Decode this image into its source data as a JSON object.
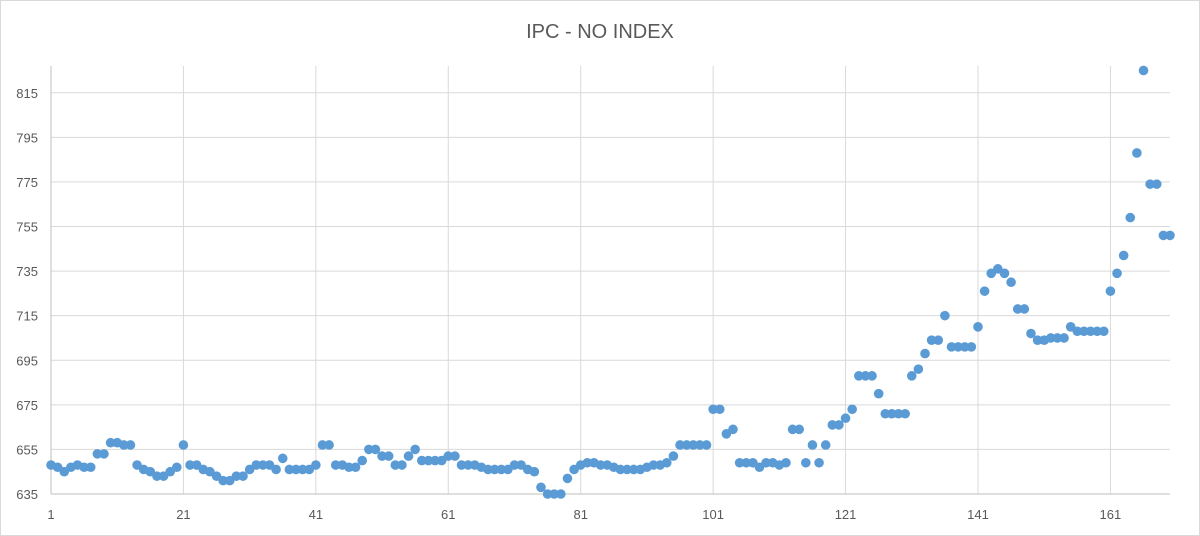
{
  "chart_data": {
    "type": "scatter",
    "title": "IPC  - NO INDEX",
    "xlabel": "",
    "ylabel": "",
    "xlim": [
      1,
      170
    ],
    "ylim": [
      635,
      827
    ],
    "x_ticks": [
      1,
      21,
      41,
      61,
      81,
      101,
      121,
      141,
      161
    ],
    "y_ticks": [
      635,
      655,
      675,
      695,
      715,
      735,
      755,
      775,
      795,
      815
    ],
    "grid": true,
    "legend": "none",
    "marker_color": "#5b9bd5",
    "series": [
      {
        "values": [
          648,
          647,
          645,
          647,
          648,
          647,
          647,
          653,
          653,
          658,
          658,
          657,
          657,
          648,
          646,
          645,
          643,
          643,
          645,
          647,
          657,
          648,
          648,
          646,
          645,
          643,
          641,
          641,
          643,
          643,
          646,
          648,
          648,
          648,
          646,
          651,
          646,
          646,
          646,
          646,
          648,
          657,
          657,
          648,
          648,
          647,
          647,
          650,
          655,
          655,
          652,
          652,
          648,
          648,
          652,
          655,
          650,
          650,
          650,
          650,
          652,
          652,
          648,
          648,
          648,
          647,
          646,
          646,
          646,
          646,
          648,
          648,
          646,
          645,
          638,
          635,
          635,
          635,
          642,
          646,
          648,
          649,
          649,
          648,
          648,
          647,
          646,
          646,
          646,
          646,
          647,
          648,
          648,
          649,
          652,
          657,
          657,
          657,
          657,
          657,
          673,
          673,
          662,
          664,
          649,
          649,
          649,
          647,
          649,
          649,
          648,
          649,
          664,
          664,
          649,
          657,
          649,
          657,
          666,
          666,
          669,
          673,
          688,
          688,
          688,
          680,
          671,
          671,
          671,
          671,
          688,
          691,
          698,
          704,
          704,
          715,
          701,
          701,
          701,
          701,
          710,
          726,
          734,
          736,
          734,
          730,
          718,
          718,
          707,
          704,
          704,
          705,
          705,
          705,
          710,
          708,
          708,
          708,
          708,
          708,
          726,
          734,
          742,
          759,
          788,
          825,
          774,
          774,
          751,
          751
        ]
      }
    ]
  }
}
